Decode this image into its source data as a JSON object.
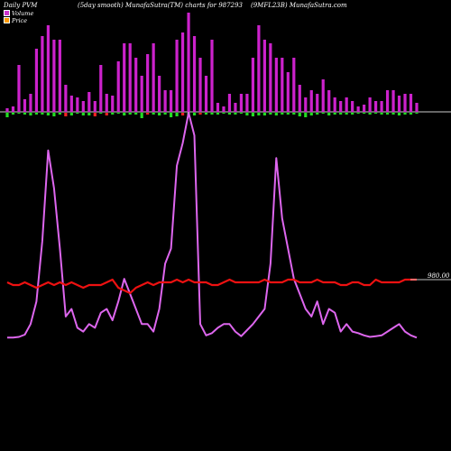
{
  "header": {
    "left": "Daily PVM",
    "middle": "(5day smooth) MunafaSutra(TM) charts for 987293",
    "right": "(9MFL23B) MunafaSutra.com"
  },
  "legend": [
    {
      "label": "Volume",
      "color": "#cc33cc",
      "icon": "square-swatch"
    },
    {
      "label": "Price",
      "color": "#ff9900",
      "icon": "square-swatch"
    }
  ],
  "chart_data": {
    "type": "line",
    "title": "",
    "subtitle": "",
    "xlabel": "",
    "ylabel": "",
    "price_label": "980.00",
    "volume_bars": [
      2,
      3,
      26,
      7,
      10,
      35,
      42,
      48,
      40,
      40,
      15,
      9,
      8,
      6,
      11,
      6,
      26,
      10,
      9,
      28,
      38,
      38,
      30,
      20,
      32,
      38,
      20,
      12,
      12,
      40,
      44,
      55,
      42,
      30,
      20,
      40,
      5,
      3,
      10,
      5,
      10,
      10,
      30,
      48,
      40,
      38,
      30,
      30,
      22,
      30,
      15,
      8,
      12,
      10,
      18,
      12,
      8,
      6,
      8,
      6,
      3,
      4,
      8,
      6,
      6,
      12,
      12,
      9,
      10,
      10,
      5
    ],
    "vol_bar_colors": [
      "m",
      "m",
      "m",
      "m",
      "m",
      "m",
      "m",
      "m",
      "m",
      "m",
      "m",
      "m",
      "m",
      "m",
      "m",
      "m",
      "m",
      "m",
      "m",
      "m",
      "m",
      "m",
      "m",
      "m",
      "m",
      "m",
      "m",
      "m",
      "m",
      "m",
      "m",
      "m",
      "m",
      "m",
      "m",
      "m",
      "m",
      "m",
      "m",
      "m",
      "m",
      "m",
      "m",
      "m",
      "m",
      "m",
      "m",
      "m",
      "m",
      "m",
      "m",
      "m",
      "m",
      "m",
      "m",
      "m",
      "m",
      "m",
      "m",
      "m",
      "m",
      "m",
      "m",
      "m",
      "m",
      "m",
      "m",
      "m",
      "m",
      "m",
      "m"
    ],
    "change_bars": [
      -5,
      -2,
      -1,
      -2,
      -3,
      -2,
      -2,
      -3,
      -4,
      -2,
      -4,
      -3,
      -1,
      -3,
      -3,
      -4,
      -1,
      -3,
      -2,
      -1,
      -3,
      -2,
      -2,
      -6,
      -2,
      -2,
      -3,
      -2,
      -5,
      -4,
      -3,
      -3,
      -3,
      -2,
      -2,
      -2,
      -2,
      -1,
      -2,
      -2,
      -1,
      -3,
      -4,
      -3,
      -3,
      -2,
      -3,
      -2,
      -2,
      -2,
      -4,
      -5,
      -3,
      -2,
      -1,
      -3,
      -2,
      -2,
      -2,
      -2,
      -1,
      -1,
      -2,
      -1,
      -2,
      -2,
      -2,
      -3,
      -2,
      -2,
      -1
    ],
    "change_colors": [
      "g",
      "g",
      "g",
      "g",
      "g",
      "g",
      "g",
      "g",
      "g",
      "g",
      "r",
      "g",
      "g",
      "g",
      "g",
      "r",
      "g",
      "r",
      "g",
      "g",
      "g",
      "g",
      "g",
      "g",
      "r",
      "g",
      "g",
      "g",
      "g",
      "g",
      "r",
      "g",
      "g",
      "r",
      "g",
      "g",
      "g",
      "g",
      "g",
      "g",
      "g",
      "g",
      "g",
      "g",
      "g",
      "g",
      "g",
      "g",
      "g",
      "g",
      "g",
      "g",
      "g",
      "g",
      "g",
      "g",
      "g",
      "g",
      "g",
      "g",
      "g",
      "g",
      "g",
      "g",
      "g",
      "g",
      "g",
      "g",
      "g",
      "g",
      "g"
    ],
    "volume_line": [
      2,
      2,
      3,
      6,
      20,
      50,
      130,
      250,
      200,
      120,
      30,
      40,
      15,
      10,
      20,
      15,
      35,
      40,
      25,
      50,
      80,
      60,
      40,
      20,
      20,
      10,
      40,
      100,
      120,
      230,
      260,
      300,
      270,
      20,
      5,
      8,
      15,
      20,
      20,
      10,
      4,
      12,
      20,
      30,
      40,
      100,
      240,
      160,
      120,
      80,
      60,
      40,
      30,
      50,
      20,
      40,
      35,
      10,
      20,
      10,
      8,
      5,
      3,
      4,
      5,
      10,
      15,
      20,
      10,
      5,
      2
    ],
    "price_line": [
      979,
      978,
      978,
      979,
      978,
      977,
      978,
      979,
      978,
      979,
      978,
      979,
      978,
      977,
      978,
      978,
      978,
      979,
      980,
      977,
      976,
      975,
      977,
      978,
      979,
      978,
      979,
      979,
      979,
      980,
      979,
      980,
      979,
      979,
      979,
      978,
      978,
      979,
      980,
      979,
      979,
      979,
      979,
      979,
      980,
      979,
      979,
      979,
      980,
      980,
      979,
      979,
      979,
      980,
      979,
      979,
      979,
      978,
      978,
      979,
      979,
      978,
      978,
      980,
      979,
      979,
      979,
      979,
      980,
      980,
      980
    ],
    "volume_ylim": [
      0,
      300
    ],
    "price_ylim": [
      940,
      1000
    ],
    "grid": false,
    "legend_placement": "top-left"
  }
}
